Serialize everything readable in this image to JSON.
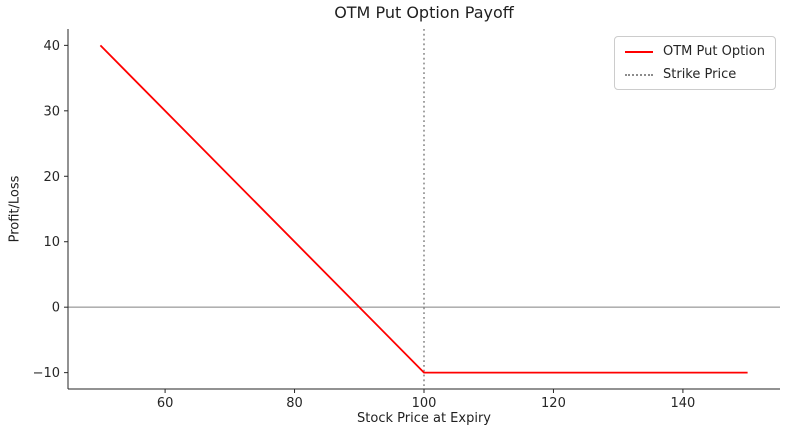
{
  "chart_data": {
    "type": "line",
    "title": "OTM Put Option Payoff",
    "xlabel": "Stock Price at Expiry",
    "ylabel": "Profit/Loss",
    "xlim": [
      45,
      155
    ],
    "ylim": [
      -12.5,
      42.5
    ],
    "x_ticks": [
      60,
      80,
      100,
      120,
      140
    ],
    "y_ticks": [
      -10,
      0,
      10,
      20,
      30,
      40
    ],
    "grid": false,
    "background_color": "#ffffff",
    "spine_color": "#262626",
    "series": [
      {
        "name": "OTM Put Option",
        "color": "#ff0000",
        "style": "solid",
        "width": 1.8,
        "points": [
          [
            50,
            40
          ],
          [
            100,
            -10
          ],
          [
            150,
            -10
          ]
        ]
      }
    ],
    "reference_lines": [
      {
        "name": "zero-line",
        "orientation": "horizontal",
        "value": 0,
        "color": "#808080",
        "style": "solid",
        "width": 1
      },
      {
        "name": "strike-price-line",
        "orientation": "vertical",
        "value": 100,
        "color": "#8c8c8c",
        "style": "dotted",
        "width": 1.6
      }
    ],
    "legend": {
      "position": "upper-right",
      "entries": [
        {
          "label": "OTM Put Option",
          "color": "#ff0000",
          "style": "solid"
        },
        {
          "label": "Strike Price",
          "color": "#8c8c8c",
          "style": "dotted"
        }
      ]
    }
  }
}
